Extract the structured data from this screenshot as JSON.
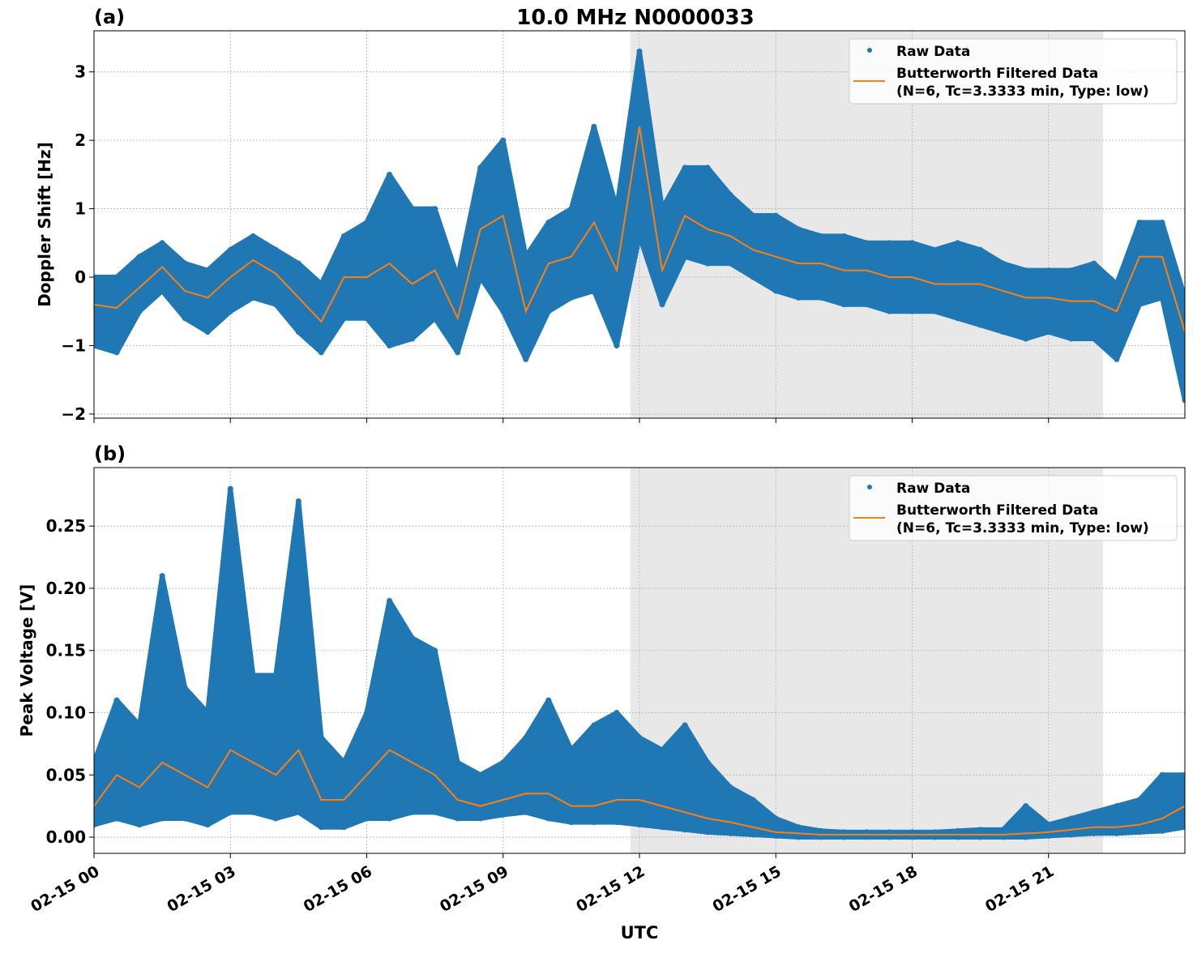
{
  "title": "10.0 MHz N0000033",
  "xlabel": "UTC",
  "legend": {
    "raw": "Raw Data",
    "filtered_line1": "Butterworth Filtered Data",
    "filtered_line2": "(N=6, Tc=3.3333 min, Type: low)"
  },
  "colors": {
    "raw": "#1f77b4",
    "filtered": "#ff7f0e",
    "shade": "#e8e8e8"
  },
  "chart_data": [
    {
      "type": "scatter",
      "panel_label": "(a)",
      "ylabel": "Doppler Shift [Hz]",
      "xlim_hours": [
        0,
        24
      ],
      "x_ticks": [
        "02-15 00",
        "02-15 03",
        "02-15 06",
        "02-15 09",
        "02-15 12",
        "02-15 15",
        "02-15 18",
        "02-15 21"
      ],
      "ylim": [
        -2.06,
        3.6
      ],
      "y_ticks": [
        -2,
        -1,
        0,
        1,
        2,
        3
      ],
      "y_tick_labels": [
        "−2",
        "−1",
        "0",
        "1",
        "2",
        "3"
      ],
      "grid": true,
      "legend_position": "top-right",
      "shaded_hours": [
        11.8,
        22.2
      ],
      "x_hours": [
        0,
        0.5,
        1,
        1.5,
        2,
        2.5,
        3,
        3.5,
        4,
        4.5,
        5,
        5.5,
        6,
        6.5,
        7,
        7.5,
        8,
        8.5,
        9,
        9.5,
        10,
        10.5,
        11,
        11.5,
        12,
        12.5,
        13,
        13.5,
        14,
        14.5,
        15,
        15.5,
        16,
        16.5,
        17,
        17.5,
        18,
        18.5,
        19,
        19.5,
        20,
        20.5,
        21,
        21.5,
        22,
        22.5,
        23,
        23.5,
        24
      ],
      "series": [
        {
          "name": "Butterworth Filtered Data",
          "values": [
            -0.4,
            -0.45,
            -0.15,
            0.15,
            -0.2,
            -0.3,
            0.0,
            0.25,
            0.05,
            -0.3,
            -0.65,
            0.0,
            0.0,
            0.2,
            -0.1,
            0.1,
            -0.6,
            0.7,
            0.9,
            -0.5,
            0.2,
            0.3,
            0.8,
            0.1,
            2.2,
            0.1,
            0.9,
            0.7,
            0.6,
            0.4,
            0.3,
            0.2,
            0.2,
            0.1,
            0.1,
            0.0,
            0.0,
            -0.1,
            -0.1,
            -0.1,
            -0.2,
            -0.3,
            -0.3,
            -0.35,
            -0.35,
            -0.5,
            0.3,
            0.3,
            -0.8
          ]
        },
        {
          "name": "Raw Data max",
          "values": [
            0.0,
            0.0,
            0.3,
            0.5,
            0.2,
            0.1,
            0.4,
            0.6,
            0.4,
            0.2,
            -0.1,
            0.6,
            0.8,
            1.5,
            1.0,
            1.0,
            0.0,
            1.6,
            2.0,
            0.3,
            0.8,
            1.0,
            2.2,
            1.0,
            3.3,
            1.0,
            1.6,
            1.6,
            1.2,
            0.9,
            0.9,
            0.7,
            0.6,
            0.6,
            0.5,
            0.5,
            0.5,
            0.4,
            0.5,
            0.4,
            0.2,
            0.1,
            0.1,
            0.1,
            0.2,
            -0.1,
            0.8,
            0.8,
            -0.3
          ]
        },
        {
          "name": "Raw Data min",
          "values": [
            -1.0,
            -1.1,
            -0.5,
            -0.2,
            -0.6,
            -0.8,
            -0.5,
            -0.3,
            -0.4,
            -0.8,
            -1.1,
            -0.6,
            -0.6,
            -1.0,
            -0.9,
            -0.6,
            -1.1,
            0.0,
            -0.5,
            -1.2,
            -0.5,
            -0.3,
            -0.2,
            -1.0,
            0.6,
            -0.4,
            0.3,
            0.2,
            0.2,
            0.0,
            -0.2,
            -0.3,
            -0.3,
            -0.4,
            -0.4,
            -0.5,
            -0.5,
            -0.5,
            -0.6,
            -0.7,
            -0.8,
            -0.9,
            -0.8,
            -0.9,
            -0.9,
            -1.2,
            -0.4,
            -0.3,
            -1.8
          ]
        }
      ]
    },
    {
      "type": "scatter",
      "panel_label": "(b)",
      "ylabel": "Peak Voltage [V]",
      "xlim_hours": [
        0,
        24
      ],
      "x_ticks": [
        "02-15 00",
        "02-15 03",
        "02-15 06",
        "02-15 09",
        "02-15 12",
        "02-15 15",
        "02-15 18",
        "02-15 21"
      ],
      "ylim": [
        -0.013,
        0.297
      ],
      "y_ticks": [
        0,
        0.05,
        0.1,
        0.15,
        0.2,
        0.25
      ],
      "y_tick_labels": [
        "0.00",
        "0.05",
        "0.10",
        "0.15",
        "0.20",
        "0.25"
      ],
      "grid": true,
      "legend_position": "top-right",
      "shaded_hours": [
        11.8,
        22.2
      ],
      "x_hours": [
        0,
        0.5,
        1,
        1.5,
        2,
        2.5,
        3,
        3.5,
        4,
        4.5,
        5,
        5.5,
        6,
        6.5,
        7,
        7.5,
        8,
        8.5,
        9,
        9.5,
        10,
        10.5,
        11,
        11.5,
        12,
        12.5,
        13,
        13.5,
        14,
        14.5,
        15,
        15.5,
        16,
        16.5,
        17,
        17.5,
        18,
        18.5,
        19,
        19.5,
        20,
        20.5,
        21,
        21.5,
        22,
        22.5,
        23,
        23.5,
        24
      ],
      "series": [
        {
          "name": "Butterworth Filtered Data",
          "values": [
            0.025,
            0.05,
            0.04,
            0.06,
            0.05,
            0.04,
            0.07,
            0.06,
            0.05,
            0.07,
            0.03,
            0.03,
            0.05,
            0.07,
            0.06,
            0.05,
            0.03,
            0.025,
            0.03,
            0.035,
            0.035,
            0.025,
            0.025,
            0.03,
            0.03,
            0.025,
            0.02,
            0.015,
            0.012,
            0.008,
            0.004,
            0.003,
            0.002,
            0.002,
            0.002,
            0.002,
            0.002,
            0.002,
            0.002,
            0.002,
            0.002,
            0.003,
            0.004,
            0.006,
            0.008,
            0.008,
            0.01,
            0.015,
            0.025
          ]
        },
        {
          "name": "Raw Data max",
          "values": [
            0.06,
            0.11,
            0.09,
            0.21,
            0.12,
            0.1,
            0.28,
            0.13,
            0.13,
            0.27,
            0.08,
            0.06,
            0.1,
            0.19,
            0.16,
            0.15,
            0.06,
            0.05,
            0.06,
            0.08,
            0.11,
            0.07,
            0.09,
            0.1,
            0.08,
            0.07,
            0.09,
            0.06,
            0.04,
            0.03,
            0.015,
            0.008,
            0.005,
            0.004,
            0.004,
            0.004,
            0.004,
            0.004,
            0.005,
            0.006,
            0.006,
            0.025,
            0.01,
            0.015,
            0.02,
            0.025,
            0.03,
            0.05,
            0.05
          ]
        },
        {
          "name": "Raw Data min",
          "values": [
            0.01,
            0.015,
            0.01,
            0.015,
            0.015,
            0.01,
            0.02,
            0.02,
            0.015,
            0.02,
            0.008,
            0.008,
            0.015,
            0.015,
            0.02,
            0.02,
            0.015,
            0.015,
            0.018,
            0.02,
            0.015,
            0.012,
            0.012,
            0.012,
            0.01,
            0.008,
            0.006,
            0.004,
            0.003,
            0.002,
            0.001,
            0.0,
            0.0,
            0.0,
            0.0,
            0.0,
            0.0,
            0.0,
            0.0,
            0.0,
            0.0,
            0.0,
            0.001,
            0.002,
            0.003,
            0.003,
            0.004,
            0.005,
            0.008
          ]
        }
      ]
    }
  ]
}
